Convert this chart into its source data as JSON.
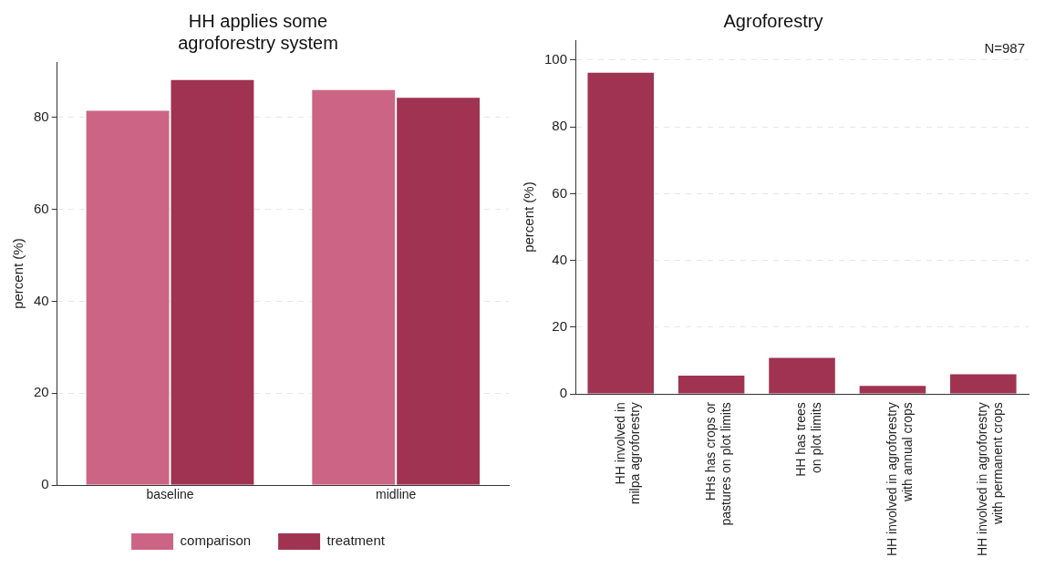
{
  "chart_data": [
    {
      "type": "bar",
      "title": "HH applies some agroforestry system",
      "categories": [
        "baseline",
        "midline"
      ],
      "series": [
        {
          "name": "comparison",
          "color": "#cc6585",
          "values": [
            81.6,
            86.1
          ]
        },
        {
          "name": "treatment",
          "color": "#a03352",
          "values": [
            88.3,
            84.4
          ]
        }
      ],
      "ylabel": "percent (%)",
      "ylim": [
        0,
        92
      ],
      "yticks": [
        0,
        20,
        40,
        60,
        80
      ],
      "grid": "y",
      "legend": "bottom"
    },
    {
      "type": "bar",
      "title": "Agroforestry",
      "categories": [
        "HH involved in milpa agroforestry",
        "HHs has crops or pastures on plot limits",
        "HH has trees on plot limits",
        "HH involved in agroforestry with annual crops",
        "HH involved in agroforestry with permanent crops"
      ],
      "series": [
        {
          "color": "#a03352",
          "values": [
            96.5,
            5.8,
            11.1,
            2.7,
            6.2
          ]
        }
      ],
      "ylabel": "percent (%)",
      "ylim": [
        0,
        106
      ],
      "yticks": [
        0,
        20,
        40,
        60,
        80,
        100
      ],
      "grid": "y",
      "annotations": [
        "N=987"
      ]
    }
  ]
}
